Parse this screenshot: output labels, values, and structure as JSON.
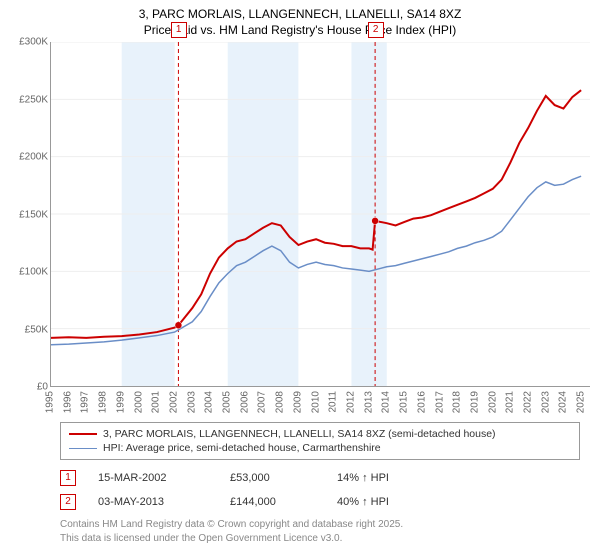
{
  "title_line1": "3, PARC MORLAIS, LLANGENNECH, LLANELLI, SA14 8XZ",
  "title_line2": "Price paid vs. HM Land Registry's House Price Index (HPI)",
  "chart": {
    "type": "line",
    "background_color": "#ffffff",
    "band_color": "#e8f2fb",
    "grid_color": "#eeeeee",
    "axis_color": "#999999",
    "marker_line_color": "#cc0000",
    "label_fontsize": 10,
    "ylim": [
      0,
      300000
    ],
    "yticks": [
      {
        "v": 0,
        "label": "£0"
      },
      {
        "v": 50000,
        "label": "£50K"
      },
      {
        "v": 100000,
        "label": "£100K"
      },
      {
        "v": 150000,
        "label": "£150K"
      },
      {
        "v": 200000,
        "label": "£200K"
      },
      {
        "v": 250000,
        "label": "£250K"
      },
      {
        "v": 300000,
        "label": "£300K"
      }
    ],
    "xlim": [
      1995,
      2025.5
    ],
    "xticks": [
      1995,
      1996,
      1997,
      1998,
      1999,
      2000,
      2001,
      2002,
      2003,
      2004,
      2005,
      2006,
      2007,
      2008,
      2009,
      2010,
      2011,
      2012,
      2013,
      2014,
      2015,
      2016,
      2017,
      2018,
      2019,
      2020,
      2021,
      2022,
      2023,
      2024,
      2025
    ],
    "bands": [
      {
        "from": 1999,
        "to": 2002
      },
      {
        "from": 2005,
        "to": 2009
      },
      {
        "from": 2012,
        "to": 2014
      }
    ],
    "markers": [
      {
        "id": "1",
        "x": 2002.21,
        "y": 53000
      },
      {
        "id": "2",
        "x": 2013.34,
        "y": 144000
      }
    ],
    "series": [
      {
        "name": "price_paid",
        "color": "#cc0000",
        "width": 2,
        "points": [
          [
            1995,
            42000
          ],
          [
            1996,
            42500
          ],
          [
            1997,
            42000
          ],
          [
            1998,
            43000
          ],
          [
            1999,
            43500
          ],
          [
            2000,
            45000
          ],
          [
            2001,
            47000
          ],
          [
            2002,
            51000
          ],
          [
            2002.21,
            53000
          ],
          [
            2003,
            68000
          ],
          [
            2003.5,
            80000
          ],
          [
            2004,
            98000
          ],
          [
            2004.5,
            112000
          ],
          [
            2005,
            120000
          ],
          [
            2005.5,
            126000
          ],
          [
            2006,
            128000
          ],
          [
            2006.5,
            133000
          ],
          [
            2007,
            138000
          ],
          [
            2007.5,
            142000
          ],
          [
            2008,
            140000
          ],
          [
            2008.5,
            130000
          ],
          [
            2009,
            123000
          ],
          [
            2009.5,
            126000
          ],
          [
            2010,
            128000
          ],
          [
            2010.5,
            125000
          ],
          [
            2011,
            124000
          ],
          [
            2011.5,
            122000
          ],
          [
            2012,
            122000
          ],
          [
            2012.5,
            120000
          ],
          [
            2013,
            120000
          ],
          [
            2013.2,
            119000
          ],
          [
            2013.34,
            144000
          ],
          [
            2014,
            142000
          ],
          [
            2014.5,
            140000
          ],
          [
            2015,
            143000
          ],
          [
            2015.5,
            146000
          ],
          [
            2016,
            147000
          ],
          [
            2016.5,
            149000
          ],
          [
            2017,
            152000
          ],
          [
            2017.5,
            155000
          ],
          [
            2018,
            158000
          ],
          [
            2018.5,
            161000
          ],
          [
            2019,
            164000
          ],
          [
            2019.5,
            168000
          ],
          [
            2020,
            172000
          ],
          [
            2020.5,
            180000
          ],
          [
            2021,
            195000
          ],
          [
            2021.5,
            212000
          ],
          [
            2022,
            225000
          ],
          [
            2022.5,
            240000
          ],
          [
            2023,
            253000
          ],
          [
            2023.5,
            245000
          ],
          [
            2024,
            242000
          ],
          [
            2024.5,
            252000
          ],
          [
            2025,
            258000
          ]
        ]
      },
      {
        "name": "hpi",
        "color": "#6a8ec7",
        "width": 1.5,
        "points": [
          [
            1995,
            36000
          ],
          [
            1996,
            36500
          ],
          [
            1997,
            37500
          ],
          [
            1998,
            38500
          ],
          [
            1999,
            40000
          ],
          [
            2000,
            42000
          ],
          [
            2001,
            44000
          ],
          [
            2002,
            47000
          ],
          [
            2003,
            56000
          ],
          [
            2003.5,
            65000
          ],
          [
            2004,
            78000
          ],
          [
            2004.5,
            90000
          ],
          [
            2005,
            98000
          ],
          [
            2005.5,
            105000
          ],
          [
            2006,
            108000
          ],
          [
            2006.5,
            113000
          ],
          [
            2007,
            118000
          ],
          [
            2007.5,
            122000
          ],
          [
            2008,
            118000
          ],
          [
            2008.5,
            108000
          ],
          [
            2009,
            103000
          ],
          [
            2009.5,
            106000
          ],
          [
            2010,
            108000
          ],
          [
            2010.5,
            106000
          ],
          [
            2011,
            105000
          ],
          [
            2011.5,
            103000
          ],
          [
            2012,
            102000
          ],
          [
            2012.5,
            101000
          ],
          [
            2013,
            100000
          ],
          [
            2013.5,
            102000
          ],
          [
            2014,
            104000
          ],
          [
            2014.5,
            105000
          ],
          [
            2015,
            107000
          ],
          [
            2015.5,
            109000
          ],
          [
            2016,
            111000
          ],
          [
            2016.5,
            113000
          ],
          [
            2017,
            115000
          ],
          [
            2017.5,
            117000
          ],
          [
            2018,
            120000
          ],
          [
            2018.5,
            122000
          ],
          [
            2019,
            125000
          ],
          [
            2019.5,
            127000
          ],
          [
            2020,
            130000
          ],
          [
            2020.5,
            135000
          ],
          [
            2021,
            145000
          ],
          [
            2021.5,
            155000
          ],
          [
            2022,
            165000
          ],
          [
            2022.5,
            173000
          ],
          [
            2023,
            178000
          ],
          [
            2023.5,
            175000
          ],
          [
            2024,
            176000
          ],
          [
            2024.5,
            180000
          ],
          [
            2025,
            183000
          ]
        ]
      }
    ]
  },
  "legend": {
    "items": [
      {
        "color": "#cc0000",
        "width": 2,
        "label": "3, PARC MORLAIS, LLANGENNECH, LLANELLI, SA14 8XZ (semi-detached house)"
      },
      {
        "color": "#6a8ec7",
        "width": 1.5,
        "label": "HPI: Average price, semi-detached house, Carmarthenshire"
      }
    ]
  },
  "annotations": [
    {
      "id": "1",
      "date": "15-MAR-2002",
      "price": "£53,000",
      "pct": "14% ↑ HPI"
    },
    {
      "id": "2",
      "date": "03-MAY-2013",
      "price": "£144,000",
      "pct": "40% ↑ HPI"
    }
  ],
  "credits_line1": "Contains HM Land Registry data © Crown copyright and database right 2025.",
  "credits_line2": "This data is licensed under the Open Government Licence v3.0."
}
